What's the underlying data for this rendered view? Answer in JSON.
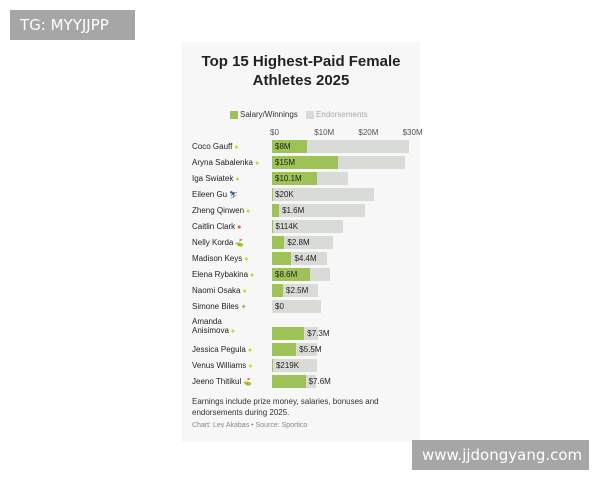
{
  "watermarks": {
    "top": "TG: MYYJJPP",
    "bottom": "www.jjdongyang.com"
  },
  "chart_data": {
    "type": "bar",
    "orientation": "horizontal",
    "stacked": true,
    "title": "Top 15 Highest-Paid Female Athletes 2025",
    "legend": [
      "Salary/Winnings",
      "Endorsements"
    ],
    "x_ticks": [
      "$0",
      "$10M",
      "$20M",
      "$30M"
    ],
    "xlim": [
      0,
      31
    ],
    "colors": {
      "salary": "#9dc356",
      "endorsements": "#d9dbd6"
    },
    "categories": [
      "Coco Gauff",
      "Aryna Sabalenka",
      "Iga Swiatek",
      "Eileen Gu",
      "Zheng Qinwen",
      "Caitlin Clark",
      "Nelly Korda",
      "Madison Keys",
      "Elena Rybakina",
      "Naomi Osaka",
      "Simone Biles",
      "Amanda Anisimova",
      "Jessica Pegula",
      "Venus Williams",
      "Jeeno Thitikul"
    ],
    "icons": [
      "tennis-ball",
      "tennis-ball",
      "tennis-ball",
      "skier",
      "tennis-ball",
      "basketball",
      "golfer",
      "tennis-ball",
      "tennis-ball",
      "tennis-ball",
      "gymnast",
      "tennis-ball",
      "tennis-ball",
      "tennis-ball",
      "golfer"
    ],
    "series": [
      {
        "name": "Salary/Winnings",
        "values": [
          8,
          15,
          10.1,
          0.02,
          1.6,
          0.114,
          2.8,
          4.4,
          8.6,
          2.5,
          0,
          7.3,
          5.5,
          0.219,
          7.6
        ]
      },
      {
        "name": "Endorsements",
        "values": [
          23,
          15,
          7,
          23,
          19.5,
          16,
          11,
          8,
          4.5,
          8,
          11,
          3,
          4.7,
          10,
          2.3
        ]
      }
    ],
    "value_labels": [
      "$8M",
      "$15M",
      "$10.1M",
      "$20K",
      "$1.6M",
      "$114K",
      "$2.8M",
      "$4.4M",
      "$8.6M",
      "$2.5M",
      "$0",
      "$7.3M",
      "$5.5M",
      "$219K",
      "$7.6M"
    ],
    "footnote": "Earnings include prize money, salaries, bonuses and endorsements during 2025.",
    "source": "Chart: Lev Akabas • Source: Sportico"
  }
}
